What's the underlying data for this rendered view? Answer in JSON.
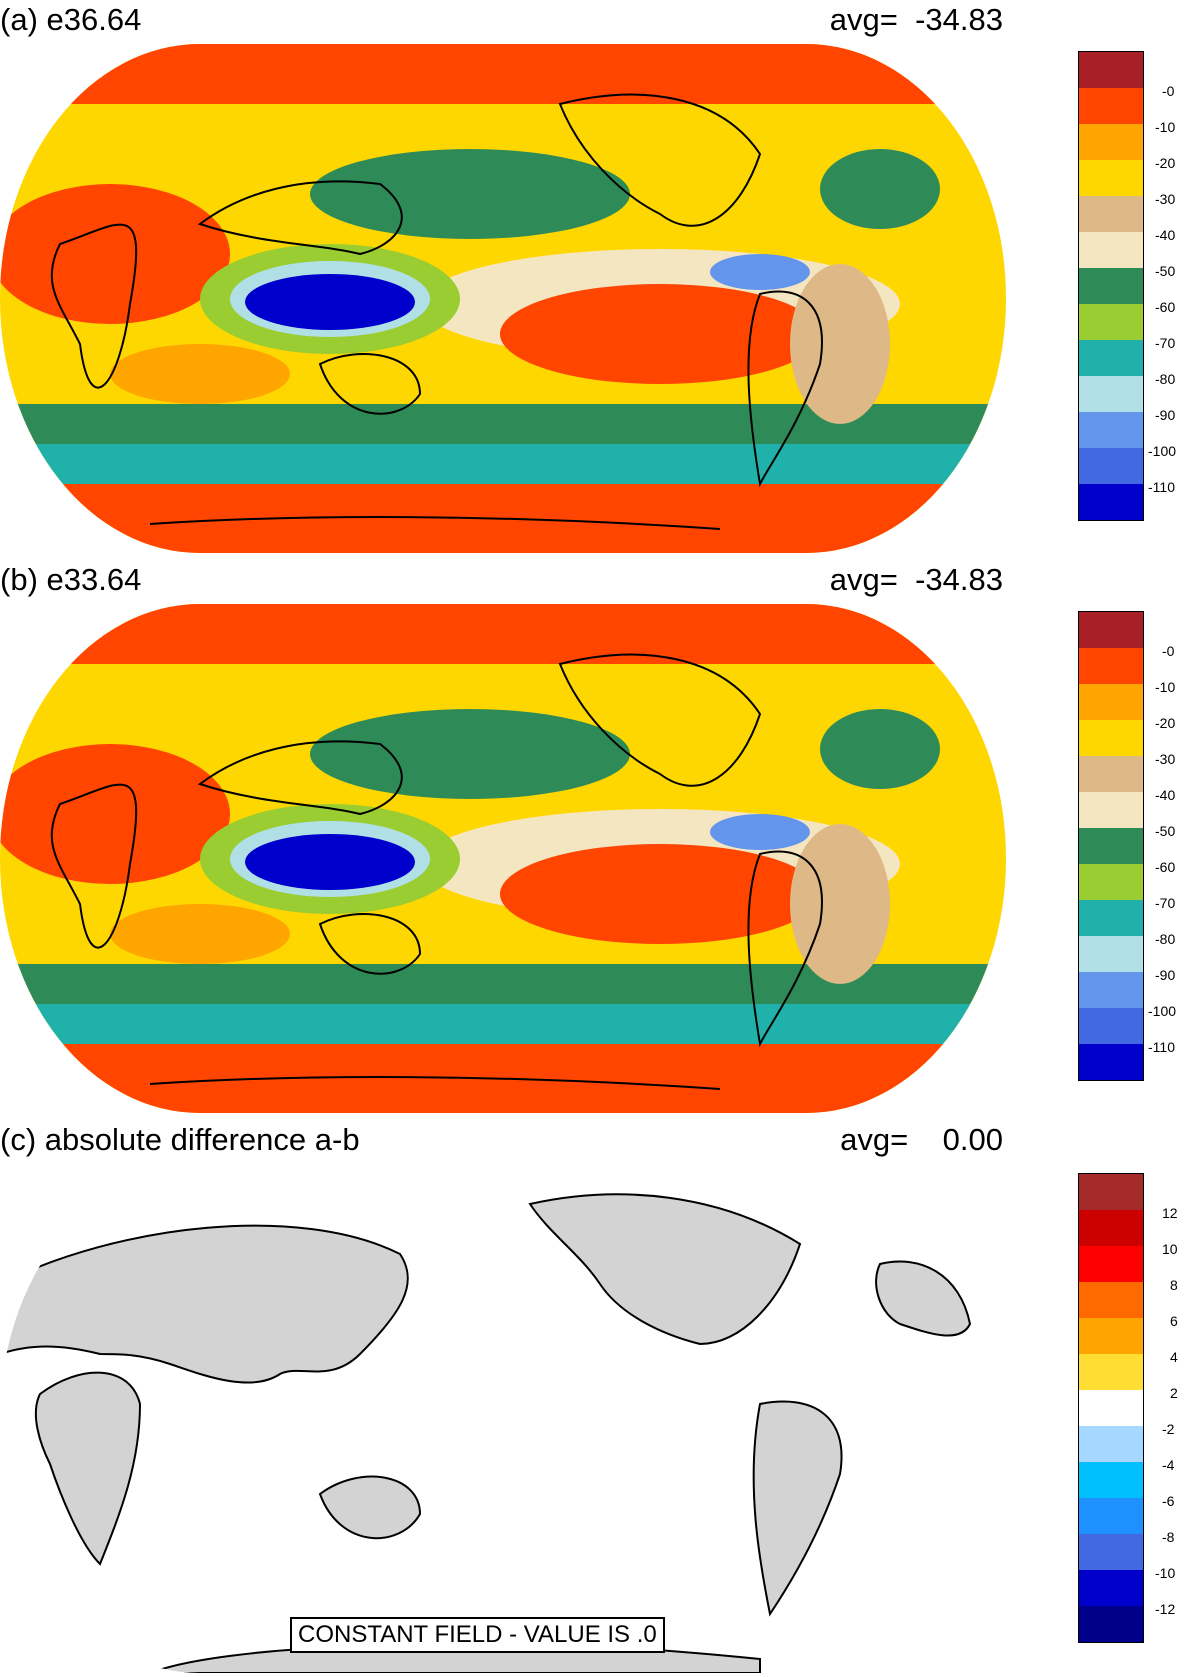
{
  "panels": [
    {
      "title": "(a) e36.64",
      "avg_label": "avg=",
      "avg_value": "-34.83",
      "legend_colors": [
        "#a81f25",
        "#ff4500",
        "#ffa500",
        "#ffd700",
        "#deb887",
        "#f5e6c2",
        "#2e8b57",
        "#9acd32",
        "#20b2aa",
        "#b0e0e6",
        "#6495ed",
        "#4169e1",
        "#0000cd"
      ],
      "legend_ticks": [
        "-0",
        "-10",
        "-20",
        "-30",
        "-40",
        "-50",
        "-60",
        "-70",
        "-80",
        "-90",
        "-100",
        "-110"
      ]
    },
    {
      "title": "(b) e33.64",
      "avg_label": "avg=",
      "avg_value": "-34.83",
      "legend_colors": [
        "#a81f25",
        "#ff4500",
        "#ffa500",
        "#ffd700",
        "#deb887",
        "#f5e6c2",
        "#2e8b57",
        "#9acd32",
        "#20b2aa",
        "#b0e0e6",
        "#6495ed",
        "#4169e1",
        "#0000cd"
      ],
      "legend_ticks": [
        "-0",
        "-10",
        "-20",
        "-30",
        "-40",
        "-50",
        "-60",
        "-70",
        "-80",
        "-90",
        "-100",
        "-110"
      ]
    },
    {
      "title": "(c) absolute difference a-b",
      "avg_label": "avg=",
      "avg_value": "0.00",
      "constant_field_label": "CONSTANT FIELD - VALUE IS .0",
      "legend_colors": [
        "#a52a2a",
        "#cd0000",
        "#ff0000",
        "#ff6a00",
        "#ffa500",
        "#ffdd33",
        "#ffffff",
        "#a6d8ff",
        "#00bfff",
        "#1e90ff",
        "#4169e1",
        "#0000cd",
        "#00008b"
      ],
      "legend_ticks": [
        "12",
        "10",
        "8",
        "6",
        "4",
        "2",
        "-2",
        "-4",
        "-6",
        "-8",
        "-10",
        "-12"
      ]
    }
  ],
  "map_style": {
    "ocean_fill_panel_c": "#ffffff",
    "land_fill_panel_c": "#d3d3d3",
    "coastline": "#000000"
  }
}
